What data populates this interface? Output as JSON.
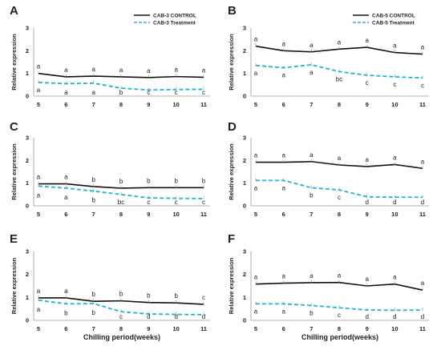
{
  "chart_data": [
    {
      "type": "line",
      "panel": "A",
      "x": [
        5,
        6,
        7,
        8,
        9,
        10,
        11
      ],
      "ylim": [
        0,
        3
      ],
      "yticks": [
        0,
        1,
        2,
        3
      ],
      "ylabel": "Relative expression",
      "xlabel": "",
      "legend": [
        "CAB-3 CONTROL",
        "CAB-3 Treatment"
      ],
      "legend_position": "top-right",
      "series": [
        {
          "name": "CAB-3 CONTROL",
          "color": "#111111",
          "style": "solid",
          "values": [
            1.0,
            0.85,
            0.88,
            0.85,
            0.82,
            0.86,
            0.83
          ],
          "letters": [
            "a",
            "a",
            "a",
            "a",
            "a",
            "a",
            "a"
          ]
        },
        {
          "name": "CAB-3 Treatment",
          "color": "#1fb3d6",
          "style": "dashed",
          "values": [
            0.6,
            0.55,
            0.57,
            0.35,
            0.27,
            0.29,
            0.3
          ],
          "letters": [
            "a",
            "a",
            "a",
            "b",
            "c",
            "c",
            "c"
          ]
        }
      ]
    },
    {
      "type": "line",
      "panel": "B",
      "x": [
        5,
        6,
        7,
        8,
        9,
        10,
        11
      ],
      "ylim": [
        0,
        3
      ],
      "yticks": [
        0,
        1,
        2,
        3
      ],
      "ylabel": "Relative expression",
      "xlabel": "",
      "legend": [
        "CAB-5 CONTROL",
        "CAB-5 Treatment"
      ],
      "legend_position": "top-right",
      "series": [
        {
          "name": "CAB-5 CONTROL",
          "color": "#111111",
          "style": "solid",
          "values": [
            2.2,
            2.0,
            1.95,
            2.07,
            2.15,
            1.92,
            1.85
          ],
          "letters": [
            "a",
            "a",
            "a",
            "a",
            "a",
            "a",
            "a"
          ]
        },
        {
          "name": "CAB-5 Treatment",
          "color": "#1fb3d6",
          "style": "dashed",
          "values": [
            1.35,
            1.25,
            1.38,
            1.08,
            0.92,
            0.85,
            0.8
          ],
          "letters": [
            "a",
            "a",
            "a",
            "bc",
            "c",
            "c",
            "c"
          ]
        }
      ]
    },
    {
      "type": "line",
      "panel": "C",
      "x": [
        5,
        6,
        7,
        8,
        9,
        10,
        11
      ],
      "ylim": [
        0,
        3
      ],
      "yticks": [
        0,
        1,
        2,
        3
      ],
      "ylabel": "Relative expression",
      "xlabel": "",
      "series": [
        {
          "color": "#111111",
          "style": "solid",
          "values": [
            0.97,
            0.97,
            0.85,
            0.78,
            0.8,
            0.8,
            0.8
          ],
          "letters": [
            "a",
            "a",
            "b",
            "b",
            "b",
            "b",
            "b"
          ]
        },
        {
          "color": "#1fb3d6",
          "style": "dashed",
          "values": [
            0.87,
            0.78,
            0.65,
            0.5,
            0.35,
            0.33,
            0.32
          ],
          "letters": [
            "a",
            "a",
            "b",
            "bc",
            "c",
            "c",
            "c"
          ]
        }
      ]
    },
    {
      "type": "line",
      "panel": "D",
      "x": [
        5,
        6,
        7,
        8,
        9,
        10,
        11
      ],
      "ylim": [
        0,
        3
      ],
      "yticks": [
        0,
        1,
        2,
        3
      ],
      "ylabel": "Relative expression",
      "xlabel": "",
      "series": [
        {
          "color": "#111111",
          "style": "solid",
          "values": [
            1.92,
            1.92,
            1.95,
            1.8,
            1.73,
            1.82,
            1.65
          ],
          "letters": [
            "a",
            "a",
            "a",
            "a",
            "a",
            "a",
            "a"
          ]
        },
        {
          "color": "#1fb3d6",
          "style": "dashed",
          "values": [
            1.12,
            1.12,
            0.8,
            0.7,
            0.4,
            0.38,
            0.38
          ],
          "letters": [
            "a",
            "a",
            "b",
            "c",
            "d",
            "d",
            "d"
          ]
        }
      ]
    },
    {
      "type": "line",
      "panel": "E",
      "x": [
        5,
        6,
        7,
        8,
        9,
        10,
        11
      ],
      "ylim": [
        0,
        3
      ],
      "yticks": [
        0,
        1,
        2,
        3
      ],
      "ylabel": "Relative expression",
      "xlabel": "Chilling period(weeks)",
      "series": [
        {
          "color": "#111111",
          "style": "solid",
          "values": [
            0.98,
            0.98,
            0.83,
            0.85,
            0.78,
            0.76,
            0.7
          ],
          "letters": [
            "a",
            "a",
            "b",
            "b",
            "b",
            "b",
            "c"
          ]
        },
        {
          "color": "#1fb3d6",
          "style": "dashed",
          "values": [
            0.88,
            0.72,
            0.73,
            0.38,
            0.28,
            0.26,
            0.25
          ],
          "letters": [
            "a",
            "b",
            "b",
            "c",
            "d",
            "d",
            "d"
          ]
        }
      ]
    },
    {
      "type": "line",
      "panel": "F",
      "x": [
        5,
        6,
        7,
        8,
        9,
        10,
        11
      ],
      "ylim": [
        0,
        3
      ],
      "yticks": [
        0,
        1,
        2,
        3
      ],
      "ylabel": "Relative expression",
      "xlabel": "Chilling period(weeks)",
      "series": [
        {
          "color": "#111111",
          "style": "solid",
          "values": [
            1.58,
            1.62,
            1.64,
            1.65,
            1.5,
            1.58,
            1.32
          ],
          "letters": [
            "a",
            "a",
            "a",
            "a",
            "a",
            "a",
            "a"
          ]
        },
        {
          "color": "#1fb3d6",
          "style": "dashed",
          "values": [
            0.72,
            0.72,
            0.65,
            0.55,
            0.45,
            0.44,
            0.45
          ],
          "letters": [
            "a",
            "a",
            "b",
            "c",
            "d",
            "d",
            "d"
          ]
        }
      ]
    }
  ]
}
